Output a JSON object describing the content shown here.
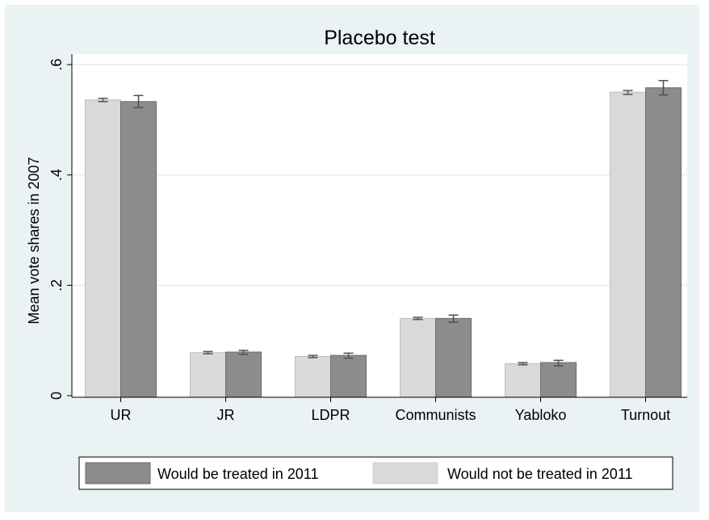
{
  "chart_data": {
    "type": "bar",
    "title": "Placebo test",
    "ylabel": "Mean vote shares in 2007",
    "xlabel": "",
    "ylim": [
      0,
      0.6
    ],
    "yticks": [
      {
        "value": 0,
        "label": "0"
      },
      {
        "value": 0.2,
        "label": ".2"
      },
      {
        "value": 0.4,
        "label": ".4"
      },
      {
        "value": 0.6,
        "label": ".6"
      }
    ],
    "grid": true,
    "categories": [
      "UR",
      "JR",
      "LDPR",
      "Communists",
      "Yabloko",
      "Turnout"
    ],
    "series": [
      {
        "name": "Would not be treated in 2011",
        "color": "#d9d9d9",
        "values": [
          0.536,
          0.078,
          0.071,
          0.14,
          0.058,
          0.55
        ],
        "error_low": [
          0.533,
          0.076,
          0.069,
          0.138,
          0.056,
          0.546
        ],
        "error_high": [
          0.539,
          0.08,
          0.073,
          0.142,
          0.06,
          0.553
        ]
      },
      {
        "name": "Would be treated in 2011",
        "color": "#8c8c8c",
        "values": [
          0.533,
          0.079,
          0.073,
          0.14,
          0.06,
          0.558
        ],
        "error_low": [
          0.522,
          0.075,
          0.068,
          0.133,
          0.054,
          0.545
        ],
        "error_high": [
          0.544,
          0.082,
          0.077,
          0.146,
          0.064,
          0.571
        ]
      }
    ],
    "legend": {
      "position": "bottom",
      "entries": [
        {
          "label": "Would be treated in 2011",
          "color": "#8c8c8c"
        },
        {
          "label": "Would not be treated in 2011",
          "color": "#d9d9d9"
        }
      ]
    }
  }
}
